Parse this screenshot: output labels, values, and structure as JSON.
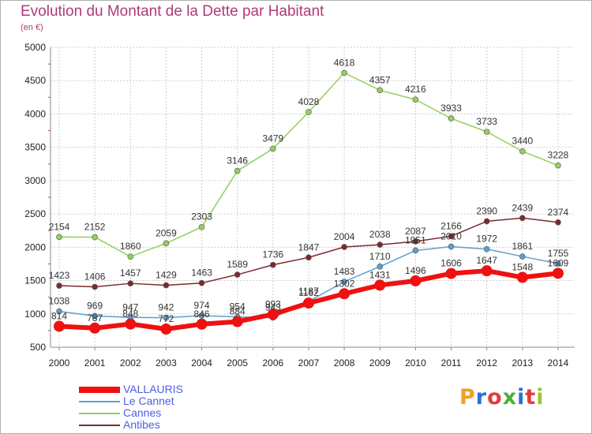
{
  "title": "Evolution du Montant de la Dette par Habitant",
  "subtitle": "(en €)",
  "logo": {
    "text": "Proxiti",
    "colors": [
      "#f0a020",
      "#2a6fd6",
      "#e23c3c",
      "#4cae35",
      "#2a6fd6",
      "#e23c3c",
      "#9ac43a"
    ]
  },
  "chart_data": {
    "type": "line",
    "title": "Evolution du Montant de la Dette par Habitant",
    "ylabel": "(en €)",
    "xlabel": "",
    "x": [
      "2000",
      "2001",
      "2002",
      "2003",
      "2004",
      "2005",
      "2006",
      "2007",
      "2008",
      "2009",
      "2010",
      "2011",
      "2012",
      "2013",
      "2014"
    ],
    "ylim": [
      500,
      5000
    ],
    "yticks": [
      500,
      1000,
      1500,
      2000,
      2500,
      3000,
      3500,
      4000,
      4500,
      5000
    ],
    "grid": true,
    "legend": "bottom-left",
    "series": [
      {
        "name": "VALLAURIS",
        "color": "#ee1111",
        "values": [
          814,
          787,
          848,
          772,
          846,
          884,
          993,
          1162,
          1302,
          1431,
          1496,
          1606,
          1647,
          1548,
          1609
        ]
      },
      {
        "name": "Le Cannet",
        "color": "#5b9fd0",
        "values": [
          1038,
          969,
          947,
          942,
          974,
          954,
          943,
          1187,
          1483,
          1710,
          1951,
          2010,
          1972,
          1861,
          1755
        ]
      },
      {
        "name": "Cannes",
        "color": "#92cf5c",
        "values": [
          2154,
          2152,
          1860,
          2059,
          2303,
          3146,
          3479,
          4028,
          4618,
          4357,
          4216,
          3933,
          3733,
          3440,
          3228
        ]
      },
      {
        "name": "Antibes",
        "color": "#7b2a2e",
        "values": [
          1423,
          1406,
          1457,
          1429,
          1463,
          1589,
          1736,
          1847,
          2004,
          2038,
          2087,
          2166,
          2390,
          2439,
          2374
        ]
      }
    ]
  }
}
